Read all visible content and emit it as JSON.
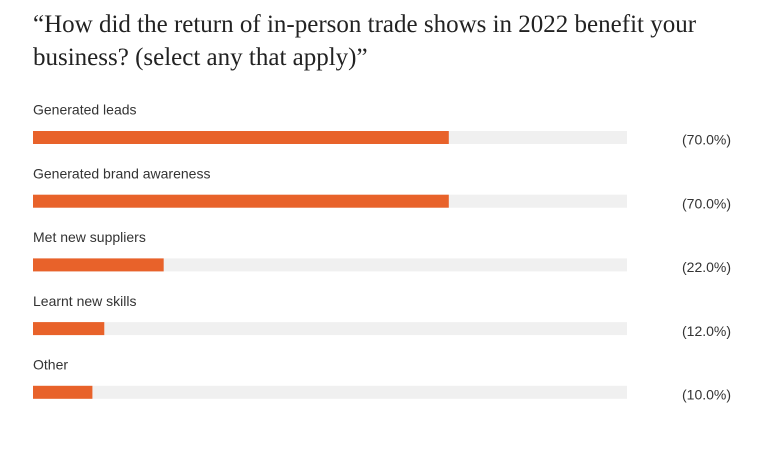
{
  "chart_data": {
    "type": "bar",
    "orientation": "horizontal",
    "title": "“How did the return of in-person trade shows in 2022 benefit your business? (select any that apply)”",
    "categories": [
      "Generated leads",
      "Generated brand awareness",
      "Met new suppliers",
      "Learnt new skills",
      "Other"
    ],
    "values": [
      70,
      70,
      22,
      12,
      10
    ],
    "value_labels": [
      "(70.0%)",
      "(70.0%)",
      "(22.0%)",
      "(12.0%)",
      "(10.0%)"
    ],
    "color": "#e8622a",
    "xlim": [
      0,
      100
    ]
  }
}
